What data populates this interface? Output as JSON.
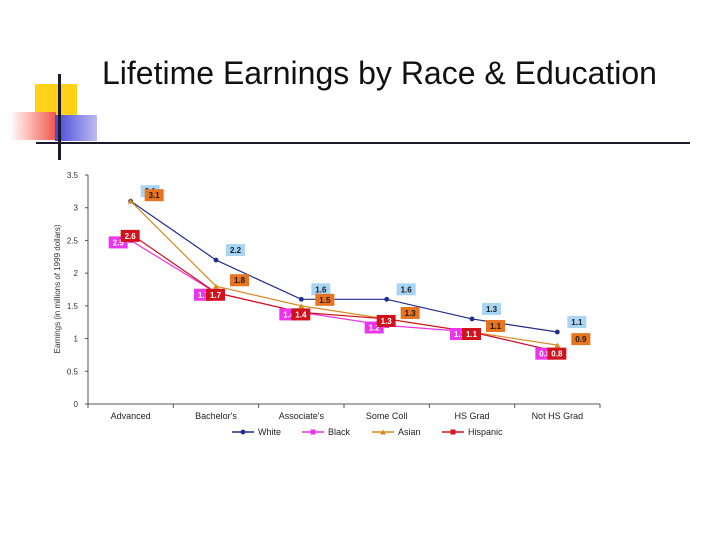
{
  "slide": {
    "title": "Lifetime Earnings by Race & Education"
  },
  "colors": {
    "white": "#1f2d8f",
    "black": "#ea35ea",
    "asian": "#d98a1f",
    "hispanic": "#d0121c"
  },
  "chart_data": {
    "type": "line",
    "title": "",
    "ylabel": "Earnings (in millions of 1999 dollars)",
    "xlabel": "",
    "ylim": [
      0,
      3.5
    ],
    "yticks": [
      "0",
      "0.5",
      "1",
      "1.5",
      "2",
      "2.5",
      "3",
      "3.5"
    ],
    "categories": [
      "Advanced",
      "Bachelor's",
      "Associate's",
      "Some Coll",
      "HS Grad",
      "Not HS Grad"
    ],
    "legend_position": "bottom",
    "series": [
      {
        "name": "White",
        "key": "white",
        "values": [
          3.1,
          2.2,
          1.6,
          1.6,
          1.3,
          1.1
        ],
        "labels": [
          "3.1",
          "2.2",
          "1.6",
          "1.6",
          "1.3",
          "1.1"
        ]
      },
      {
        "name": "Black",
        "key": "black",
        "values": [
          2.5,
          1.7,
          1.4,
          1.2,
          1.1,
          0.8
        ],
        "labels": [
          "2.5",
          "1.7",
          "1.4",
          "1.2",
          "1.1",
          "0.8"
        ]
      },
      {
        "name": "Asian",
        "key": "asian",
        "values": [
          3.1,
          1.8,
          1.5,
          1.3,
          1.1,
          0.9
        ],
        "labels": [
          "3.1",
          "1.8",
          "1.5",
          "1.3",
          "1.1",
          "0.9"
        ]
      },
      {
        "name": "Hispanic",
        "key": "hispanic",
        "values": [
          2.6,
          1.7,
          1.4,
          1.3,
          1.1,
          0.8
        ],
        "labels": [
          "2.6",
          "1.7",
          "1.4",
          "1.3",
          "1.1",
          "0.8"
        ]
      }
    ]
  }
}
